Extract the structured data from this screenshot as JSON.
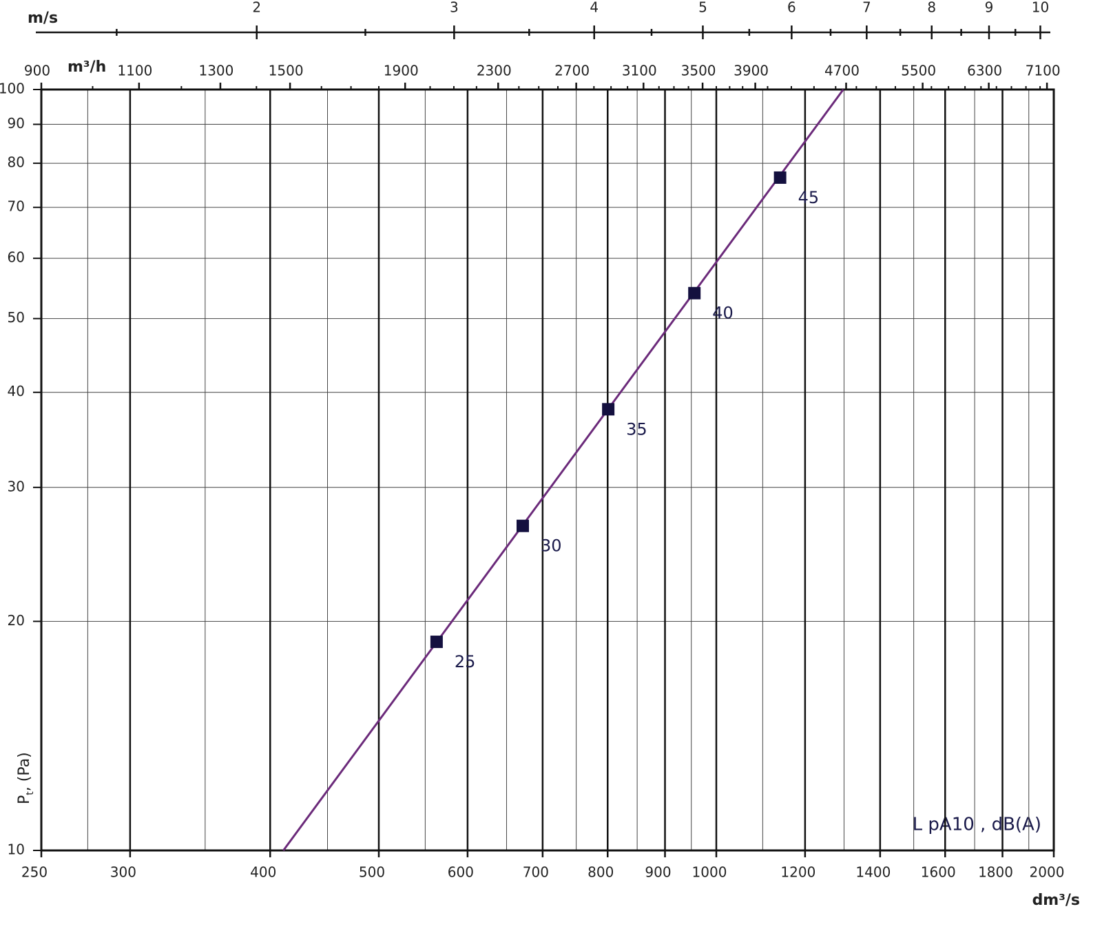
{
  "chart_data": {
    "type": "line",
    "x_label": "dm³/s",
    "y_label_parts": [
      "P",
      "t",
      ", (Pa)"
    ],
    "annotation": "L pA10 , dB(A)",
    "log_x": true,
    "log_y": true,
    "grid": true,
    "xlim": [
      250,
      2000
    ],
    "xticks": [
      250,
      300,
      400,
      500,
      600,
      700,
      800,
      900,
      1000,
      1200,
      1400,
      1600,
      1800,
      2000
    ],
    "xgrid_minor": [
      275,
      350,
      450,
      550,
      650,
      750,
      850,
      950,
      1100,
      1300,
      1500,
      1700,
      1900
    ],
    "ylim": [
      10,
      100
    ],
    "yticks": [
      10,
      20,
      30,
      40,
      50,
      60,
      70,
      80,
      90,
      100
    ],
    "series": [
      {
        "color": "#6b2a7a",
        "x": [
          411,
          1298
        ],
        "values": [
          10,
          100
        ]
      }
    ],
    "points": {
      "color": "#14103f",
      "x": [
        563,
        672,
        801,
        956,
        1140
      ],
      "values": [
        18.8,
        26.7,
        38,
        54,
        76.6
      ],
      "labels": [
        25,
        30,
        35,
        40,
        45
      ]
    },
    "top_axis_flow": {
      "label": "m³/h",
      "xlim": [
        900,
        7200
      ],
      "xticks": [
        900,
        1100,
        1300,
        1500,
        1900,
        2300,
        2700,
        3100,
        3500,
        3900,
        4700,
        5500,
        6300,
        7100
      ],
      "xminor": [
        1000,
        1200,
        1400,
        1600,
        1700,
        1800,
        2000,
        2100,
        2200,
        2400,
        2500,
        2600,
        2800,
        2900,
        3000,
        3200,
        3300,
        3400,
        3600,
        3700,
        3800,
        4000,
        4200,
        4400,
        4600,
        4800,
        5000,
        5200,
        5400,
        5600,
        5800,
        6000,
        6200,
        6400,
        6600,
        6800,
        7000
      ]
    },
    "top_axis_velocity": {
      "label": "m/s",
      "xlim": [
        1.285,
        10.28
      ],
      "xticks": [
        2,
        3,
        4,
        5,
        6,
        7,
        8,
        9,
        10
      ],
      "xminor": [
        1.5,
        2.5,
        3.5,
        4.5,
        5.5,
        6.5,
        7.5,
        8.5,
        9.5
      ]
    }
  }
}
